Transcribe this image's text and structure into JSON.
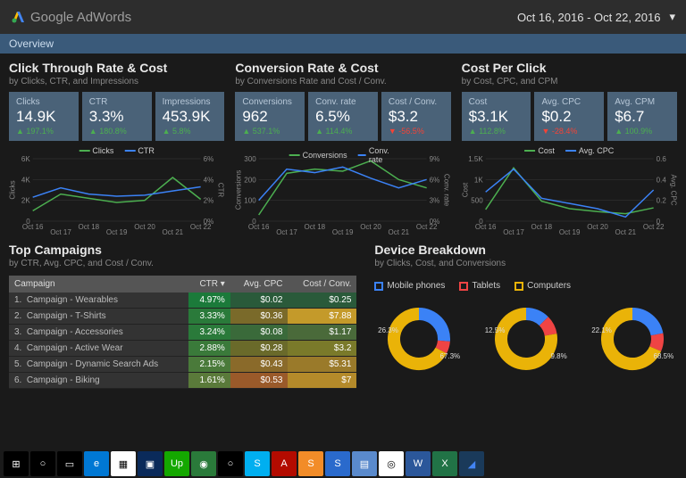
{
  "header": {
    "brand": "Google AdWords",
    "daterange": "Oct 16, 2016 - Oct 22, 2016"
  },
  "tab": {
    "label": "Overview"
  },
  "sections": {
    "ctr": {
      "title": "Click Through Rate & Cost",
      "sub": "by Clicks, CTR, and Impressions",
      "cards": [
        {
          "label": "Clicks",
          "value": "14.9K",
          "delta": "197.1%",
          "dir": "up"
        },
        {
          "label": "CTR",
          "value": "3.3%",
          "delta": "180.8%",
          "dir": "up"
        },
        {
          "label": "Impressions",
          "value": "453.9K",
          "delta": "5.8%",
          "dir": "up"
        }
      ],
      "chart": {
        "legend": [
          {
            "name": "Clicks",
            "color": "#4caf50"
          },
          {
            "name": "CTR",
            "color": "#3b82f6"
          }
        ],
        "x": [
          "Oct 16",
          "Oct 17",
          "Oct 18",
          "Oct 19",
          "Oct 20",
          "Oct 21",
          "Oct 22"
        ],
        "left": {
          "label": "Clicks",
          "ticks": [
            "0",
            "2K",
            "4K",
            "6K"
          ],
          "max": 6000,
          "series": [
            1000,
            2600,
            2200,
            1800,
            2000,
            4200,
            2100
          ],
          "color": "#4caf50"
        },
        "right": {
          "label": "CTR",
          "ticks": [
            "0%",
            "2%",
            "4%",
            "6%"
          ],
          "max": 6,
          "series": [
            2.3,
            3.2,
            2.6,
            2.4,
            2.5,
            2.9,
            3.3
          ],
          "color": "#3b82f6"
        }
      }
    },
    "conv": {
      "title": "Conversion Rate & Cost",
      "sub": "by Conversions Rate and Cost / Conv.",
      "cards": [
        {
          "label": "Conversions",
          "value": "962",
          "delta": "537.1%",
          "dir": "up"
        },
        {
          "label": "Conv. rate",
          "value": "6.5%",
          "delta": "114.4%",
          "dir": "up"
        },
        {
          "label": "Cost / Conv.",
          "value": "$3.2",
          "delta": "-56.5%",
          "dir": "down"
        }
      ],
      "chart": {
        "legend": [
          {
            "name": "Conversions",
            "color": "#4caf50"
          },
          {
            "name": "Conv. rate",
            "color": "#3b82f6"
          }
        ],
        "x": [
          "Oct 16",
          "Oct 17",
          "Oct 18",
          "Oct 19",
          "Oct 20",
          "Oct 21",
          "Oct 22"
        ],
        "left": {
          "label": "Conversions",
          "ticks": [
            "0",
            "100",
            "200",
            "300"
          ],
          "max": 300,
          "series": [
            30,
            230,
            250,
            240,
            290,
            200,
            160
          ],
          "color": "#4caf50"
        },
        "right": {
          "label": "Conv. rate",
          "ticks": [
            "0%",
            "3%",
            "6%",
            "9%"
          ],
          "max": 9,
          "series": [
            3,
            7.5,
            7,
            7.8,
            6.2,
            4.8,
            6
          ],
          "color": "#3b82f6"
        }
      }
    },
    "cpc": {
      "title": "Cost Per Click",
      "sub": "by Cost, CPC, and CPM",
      "cards": [
        {
          "label": "Cost",
          "value": "$3.1K",
          "delta": "112.8%",
          "dir": "up"
        },
        {
          "label": "Avg. CPC",
          "value": "$0.2",
          "delta": "-28.4%",
          "dir": "down"
        },
        {
          "label": "Avg. CPM",
          "value": "$6.7",
          "delta": "100.9%",
          "dir": "up"
        }
      ],
      "chart": {
        "legend": [
          {
            "name": "Cost",
            "color": "#4caf50"
          },
          {
            "name": "Avg. CPC",
            "color": "#3b82f6"
          }
        ],
        "x": [
          "Oct 16",
          "Oct 17",
          "Oct 18",
          "Oct 19",
          "Oct 20",
          "Oct 21",
          "Oct 22"
        ],
        "left": {
          "label": "Cost",
          "ticks": [
            "0",
            "500",
            "1K",
            "1.5K"
          ],
          "max": 1500,
          "series": [
            280,
            1280,
            480,
            300,
            230,
            180,
            320
          ],
          "color": "#4caf50"
        },
        "right": {
          "label": "Avg. CPC",
          "ticks": [
            "0",
            "0.2",
            "0.4",
            "0.6"
          ],
          "max": 0.6,
          "series": [
            0.28,
            0.5,
            0.22,
            0.17,
            0.12,
            0.04,
            0.3
          ],
          "color": "#3b82f6"
        }
      }
    }
  },
  "campaigns": {
    "title": "Top Campaigns",
    "sub": "by CTR, Avg. CPC, and Cost / Conv.",
    "columns": [
      "Campaign",
      "CTR ▾",
      "Avg. CPC",
      "Cost / Conv."
    ],
    "rows": [
      {
        "n": "1.",
        "name": "Campaign - Wearables",
        "ctr": "4.97%",
        "ctr_bg": "#1b7a3a",
        "cpc": "$0.02",
        "cpc_bg": "#2a5a3a",
        "cost": "$0.25",
        "cost_bg": "#2a5a3a"
      },
      {
        "n": "2.",
        "name": "Campaign - T-Shirts",
        "ctr": "3.33%",
        "ctr_bg": "#2a7a3a",
        "cpc": "$0.36",
        "cpc_bg": "#7a6a2a",
        "cost": "$7.88",
        "cost_bg": "#c49a2a"
      },
      {
        "n": "3.",
        "name": "Campaign - Accessories",
        "ctr": "3.24%",
        "ctr_bg": "#2a7a3a",
        "cpc": "$0.08",
        "cpc_bg": "#3a6a3a",
        "cost": "$1.17",
        "cost_bg": "#4a6a3a"
      },
      {
        "n": "4.",
        "name": "Campaign - Active Wear",
        "ctr": "2.88%",
        "ctr_bg": "#3a7a3a",
        "cpc": "$0.28",
        "cpc_bg": "#6a6a2a",
        "cost": "$3.2",
        "cost_bg": "#7a7a2a"
      },
      {
        "n": "5.",
        "name": "Campaign - Dynamic Search Ads",
        "ctr": "2.15%",
        "ctr_bg": "#4a7a3a",
        "cpc": "$0.43",
        "cpc_bg": "#8a6a2a",
        "cost": "$5.31",
        "cost_bg": "#9a7a2a"
      },
      {
        "n": "6.",
        "name": "Campaign - Biking",
        "ctr": "1.61%",
        "ctr_bg": "#5a7a3a",
        "cpc": "$0.53",
        "cpc_bg": "#9a5a2a",
        "cost": "$7",
        "cost_bg": "#b48a2a"
      }
    ]
  },
  "devices": {
    "title": "Device Breakdown",
    "sub": "by Clicks, Cost, and Conversions",
    "legend": [
      {
        "name": "Mobile phones",
        "color": "#3b82f6"
      },
      {
        "name": "Tablets",
        "color": "#ef4444"
      },
      {
        "name": "Computers",
        "color": "#eab308"
      }
    ],
    "donuts": [
      {
        "slices": [
          {
            "pct": 26.3,
            "color": "#3b82f6"
          },
          {
            "pct": 6.4,
            "color": "#ef4444"
          },
          {
            "pct": 67.3,
            "color": "#eab308"
          }
        ],
        "labels": [
          "26.3%",
          "67.3%"
        ]
      },
      {
        "slices": [
          {
            "pct": 12.5,
            "color": "#3b82f6"
          },
          {
            "pct": 9.8,
            "color": "#ef4444"
          },
          {
            "pct": 77.7,
            "color": "#eab308"
          }
        ],
        "labels": [
          "12.5%",
          "9.8%"
        ]
      },
      {
        "slices": [
          {
            "pct": 22.1,
            "color": "#3b82f6"
          },
          {
            "pct": 9.4,
            "color": "#ef4444"
          },
          {
            "pct": 68.5,
            "color": "#eab308"
          }
        ],
        "labels": [
          "22.1%",
          "68.5%"
        ]
      }
    ]
  },
  "taskbar": {
    "icons": [
      {
        "name": "start",
        "bg": "#000",
        "fg": "#fff",
        "glyph": "⊞"
      },
      {
        "name": "search",
        "bg": "#000",
        "fg": "#fff",
        "glyph": "○"
      },
      {
        "name": "taskview",
        "bg": "#000",
        "fg": "#fff",
        "glyph": "▭"
      },
      {
        "name": "edge",
        "bg": "#0078d4",
        "fg": "#fff",
        "glyph": "e"
      },
      {
        "name": "app1",
        "bg": "#fff",
        "fg": "#000",
        "glyph": "▦"
      },
      {
        "name": "app2",
        "bg": "#0a2a5a",
        "fg": "#fff",
        "glyph": "▣"
      },
      {
        "name": "upwork",
        "bg": "#14a800",
        "fg": "#fff",
        "glyph": "Up"
      },
      {
        "name": "app3",
        "bg": "#2a7a3a",
        "fg": "#fff",
        "glyph": "◉"
      },
      {
        "name": "app4",
        "bg": "#000",
        "fg": "#fff",
        "glyph": "○"
      },
      {
        "name": "skype",
        "bg": "#00aff0",
        "fg": "#fff",
        "glyph": "S"
      },
      {
        "name": "acrobat",
        "bg": "#b30b00",
        "fg": "#fff",
        "glyph": "A"
      },
      {
        "name": "snagit",
        "bg": "#f28c28",
        "fg": "#fff",
        "glyph": "S"
      },
      {
        "name": "app5",
        "bg": "#2a6acc",
        "fg": "#fff",
        "glyph": "S"
      },
      {
        "name": "app6",
        "bg": "#5a8acc",
        "fg": "#fff",
        "glyph": "▤"
      },
      {
        "name": "chrome",
        "bg": "#fff",
        "fg": "#000",
        "glyph": "◎"
      },
      {
        "name": "word",
        "bg": "#2b579a",
        "fg": "#fff",
        "glyph": "W"
      },
      {
        "name": "excel",
        "bg": "#217346",
        "fg": "#fff",
        "glyph": "X"
      },
      {
        "name": "adwords",
        "bg": "#1a3a5a",
        "fg": "#4285f4",
        "glyph": "◢"
      }
    ]
  },
  "colors": {
    "bg": "#1a1a1a",
    "panel": "#2d2d2d",
    "card": "#4a6278",
    "tab": "#3a5a7a",
    "grid": "#3a3a3a"
  }
}
